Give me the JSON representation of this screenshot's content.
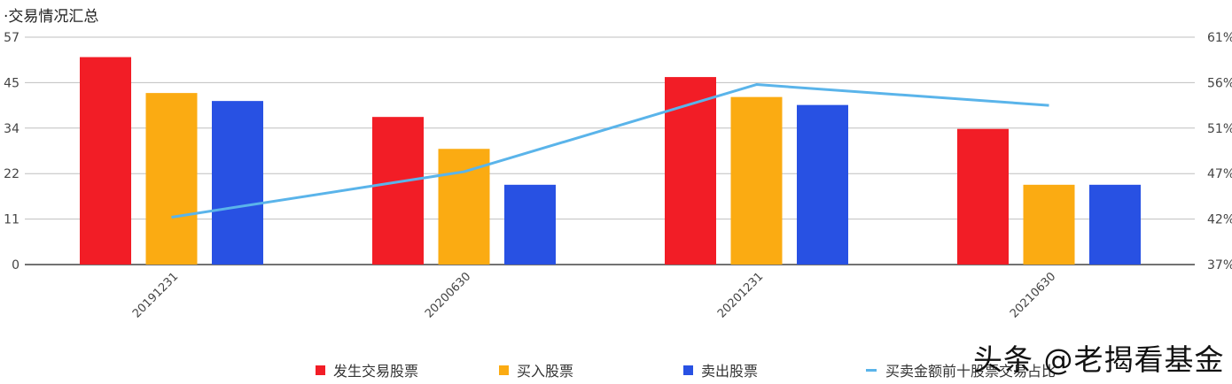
{
  "title": "·交易情况汇总",
  "colors": {
    "traded": "#f21d26",
    "bought": "#fbab12",
    "sold": "#2851e3",
    "ratio": "#5ab4ea",
    "grid": "#bfbfbf",
    "axis": "#444444"
  },
  "chart_data": {
    "type": "bar+line",
    "title": "·交易情况汇总",
    "categories": [
      "20191231",
      "20200630",
      "20201231",
      "20210630"
    ],
    "series": [
      {
        "name": "发生交易股票",
        "type": "bar",
        "axis": "left",
        "values": [
          52,
          37,
          47,
          34
        ]
      },
      {
        "name": "买入股票",
        "type": "bar",
        "axis": "left",
        "values": [
          43,
          29,
          42,
          20
        ]
      },
      {
        "name": "卖出股票",
        "type": "bar",
        "axis": "left",
        "values": [
          41,
          20,
          40,
          20
        ]
      },
      {
        "name": "买卖金额前十股票交易占比",
        "type": "line",
        "axis": "right",
        "values": [
          42.0,
          46.8,
          56.0,
          53.8
        ]
      }
    ],
    "left_axis": {
      "ticks": [
        "0",
        "11",
        "22",
        "34",
        "45",
        "57"
      ],
      "range": [
        0,
        57
      ]
    },
    "right_axis": {
      "ticks": [
        "37%",
        "42%",
        "47%",
        "51%",
        "56%",
        "61%"
      ],
      "range": [
        37,
        61
      ]
    },
    "xlabel": "",
    "ylabel": "",
    "grid": true,
    "legend_position": "bottom"
  },
  "legend": [
    {
      "label": "发生交易股票",
      "kind": "square"
    },
    {
      "label": "买入股票",
      "kind": "square"
    },
    {
      "label": "卖出股票",
      "kind": "square"
    },
    {
      "label": "买卖金额前十股票交易占比",
      "kind": "line"
    }
  ],
  "watermark": "头条 @老揭看基金"
}
